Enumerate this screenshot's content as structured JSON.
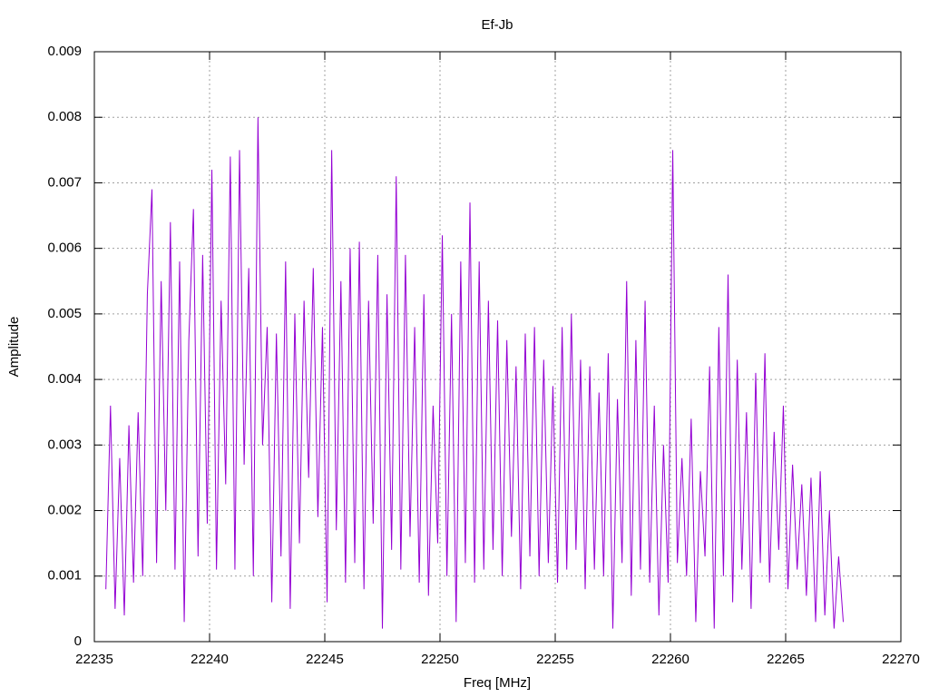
{
  "chart_data": {
    "type": "line",
    "title": "Ef-Jb",
    "x_label": "Freq [MHz]",
    "y_label": "Amplitude",
    "color": "#9400d3",
    "grid": true,
    "xlim": [
      22235,
      22270
    ],
    "xticks": [
      22235,
      22240,
      22245,
      22250,
      22255,
      22260,
      22265,
      22270
    ],
    "ylim": [
      0,
      0.009
    ],
    "yticks": [
      0,
      0.001,
      0.002,
      0.003,
      0.004,
      0.005,
      0.006,
      0.007,
      0.008,
      0.009
    ],
    "x": [
      22235.5,
      22235.7,
      22235.9,
      22236.1,
      22236.3,
      22236.5,
      22236.7,
      22236.9,
      22237.1,
      22237.3,
      22237.5,
      22237.7,
      22237.9,
      22238.1,
      22238.3,
      22238.5,
      22238.7,
      22238.9,
      22239.1,
      22239.3,
      22239.5,
      22239.7,
      22239.9,
      22240.1,
      22240.3,
      22240.5,
      22240.7,
      22240.9,
      22241.1,
      22241.3,
      22241.5,
      22241.7,
      22241.9,
      22242.1,
      22242.3,
      22242.5,
      22242.7,
      22242.9,
      22243.1,
      22243.3,
      22243.5,
      22243.7,
      22243.9,
      22244.1,
      22244.3,
      22244.5,
      22244.7,
      22244.9,
      22245.1,
      22245.3,
      22245.5,
      22245.7,
      22245.9,
      22246.1,
      22246.3,
      22246.5,
      22246.7,
      22246.9,
      22247.1,
      22247.3,
      22247.5,
      22247.7,
      22247.9,
      22248.1,
      22248.3,
      22248.5,
      22248.7,
      22248.9,
      22249.1,
      22249.3,
      22249.5,
      22249.7,
      22249.9,
      22250.1,
      22250.3,
      22250.5,
      22250.7,
      22250.9,
      22251.1,
      22251.3,
      22251.5,
      22251.7,
      22251.9,
      22252.1,
      22252.3,
      22252.5,
      22252.7,
      22252.9,
      22253.1,
      22253.3,
      22253.5,
      22253.7,
      22253.9,
      22254.1,
      22254.3,
      22254.5,
      22254.7,
      22254.9,
      22255.1,
      22255.3,
      22255.5,
      22255.7,
      22255.9,
      22256.1,
      22256.3,
      22256.5,
      22256.7,
      22256.9,
      22257.1,
      22257.3,
      22257.5,
      22257.7,
      22257.9,
      22258.1,
      22258.3,
      22258.5,
      22258.7,
      22258.9,
      22259.1,
      22259.3,
      22259.5,
      22259.7,
      22259.9,
      22260.1,
      22260.3,
      22260.5,
      22260.7,
      22260.9,
      22261.1,
      22261.3,
      22261.5,
      22261.7,
      22261.9,
      22262.1,
      22262.3,
      22262.5,
      22262.7,
      22262.9,
      22263.1,
      22263.3,
      22263.5,
      22263.7,
      22263.9,
      22264.1,
      22264.3,
      22264.5,
      22264.7,
      22264.9,
      22265.1,
      22265.3,
      22265.5,
      22265.7,
      22265.9,
      22266.1,
      22266.3,
      22266.5,
      22266.7,
      22266.9,
      22267.1,
      22267.3,
      22267.5
    ],
    "values": [
      0.0008,
      0.0036,
      0.0005,
      0.0028,
      0.0004,
      0.0033,
      0.0009,
      0.0035,
      0.001,
      0.0053,
      0.0069,
      0.0012,
      0.0055,
      0.002,
      0.0064,
      0.0011,
      0.0058,
      0.0003,
      0.0046,
      0.0066,
      0.0013,
      0.0059,
      0.0018,
      0.0072,
      0.0011,
      0.0052,
      0.0024,
      0.0074,
      0.0011,
      0.0075,
      0.0027,
      0.0057,
      0.001,
      0.008,
      0.003,
      0.0048,
      0.0006,
      0.0047,
      0.0013,
      0.0058,
      0.0005,
      0.005,
      0.0015,
      0.0052,
      0.0025,
      0.0057,
      0.0019,
      0.0048,
      0.0006,
      0.0075,
      0.0017,
      0.0055,
      0.0009,
      0.006,
      0.0012,
      0.0061,
      0.0008,
      0.0052,
      0.0018,
      0.0059,
      0.0002,
      0.0053,
      0.0014,
      0.0071,
      0.0011,
      0.0059,
      0.0016,
      0.0048,
      0.0009,
      0.0053,
      0.0007,
      0.0036,
      0.0015,
      0.0062,
      0.001,
      0.005,
      0.0003,
      0.0058,
      0.0012,
      0.0067,
      0.0009,
      0.0058,
      0.0011,
      0.0052,
      0.0014,
      0.0049,
      0.001,
      0.0046,
      0.0016,
      0.0042,
      0.0008,
      0.0047,
      0.0013,
      0.0048,
      0.001,
      0.0043,
      0.0012,
      0.0039,
      0.0009,
      0.0048,
      0.0011,
      0.005,
      0.0014,
      0.0043,
      0.0008,
      0.0042,
      0.0011,
      0.0038,
      0.001,
      0.0044,
      0.0002,
      0.0037,
      0.0012,
      0.0055,
      0.0007,
      0.0046,
      0.0011,
      0.0052,
      0.0009,
      0.0036,
      0.0004,
      0.003,
      0.0009,
      0.0075,
      0.0012,
      0.0028,
      0.001,
      0.0034,
      0.0003,
      0.0026,
      0.0013,
      0.0042,
      0.0002,
      0.0048,
      0.001,
      0.0056,
      0.0006,
      0.0043,
      0.0011,
      0.0035,
      0.0005,
      0.0041,
      0.0012,
      0.0044,
      0.0009,
      0.0032,
      0.0014,
      0.0036,
      0.0008,
      0.0027,
      0.0011,
      0.0024,
      0.0007,
      0.0025,
      0.0003,
      0.0026,
      0.0004,
      0.002,
      0.0002,
      0.0013,
      0.0003
    ]
  }
}
